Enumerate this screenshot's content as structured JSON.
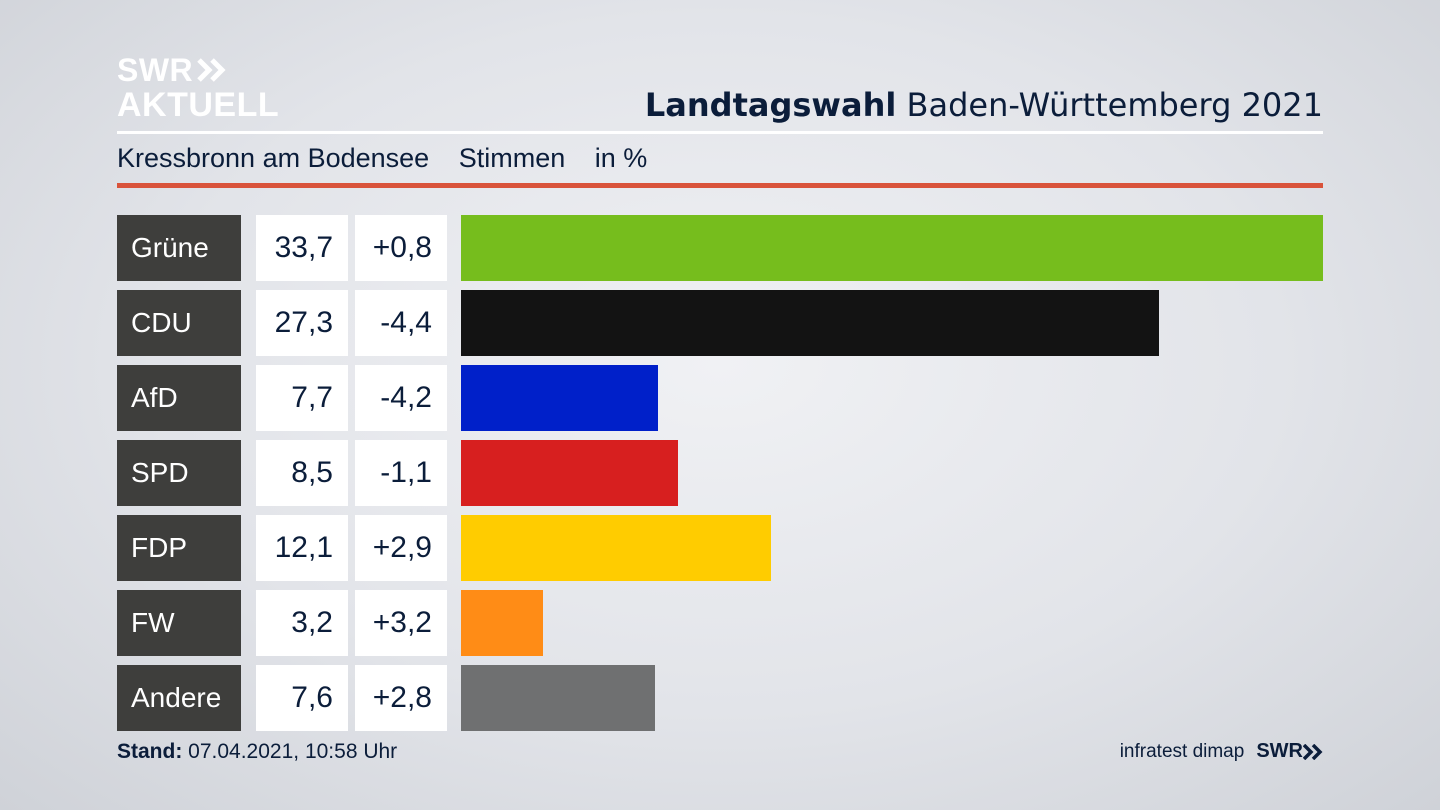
{
  "logo": {
    "line1": "SWR",
    "line2": "AKTUELL"
  },
  "header": {
    "title_bold": "Landtagswahl",
    "title_rest": "Baden-Württemberg 2021"
  },
  "subtitle": {
    "place": "Kressbronn am Bodensee",
    "measure": "Stimmen",
    "unit": "in %"
  },
  "colors": {
    "accent_rule": "#d9533b",
    "party_cell_bg": "#3e3e3c"
  },
  "chart_data": {
    "type": "bar",
    "orientation": "horizontal",
    "categories": [
      "Grüne",
      "CDU",
      "AfD",
      "SPD",
      "FDP",
      "FW",
      "Andere"
    ],
    "values": [
      33.7,
      27.3,
      7.7,
      8.5,
      12.1,
      3.2,
      7.6
    ],
    "value_labels": [
      "33,7",
      "27,3",
      "7,7",
      "8,5",
      "12,1",
      "3,2",
      "7,6"
    ],
    "diff_labels": [
      "+0,8",
      "-4,4",
      "-4,2",
      "-1,1",
      "+2,9",
      "+3,2",
      "+2,8"
    ],
    "bar_colors": [
      "#76bd1d",
      "#131313",
      "#0020c9",
      "#d71f1f",
      "#ffcc00",
      "#ff8c16",
      "#6f7071"
    ],
    "xlim": [
      0,
      33.7
    ]
  },
  "footer": {
    "stand_label": "Stand:",
    "stand_value": "07.04.2021, 10:58 Uhr",
    "source": "infratest dimap",
    "brand": "SWR"
  }
}
